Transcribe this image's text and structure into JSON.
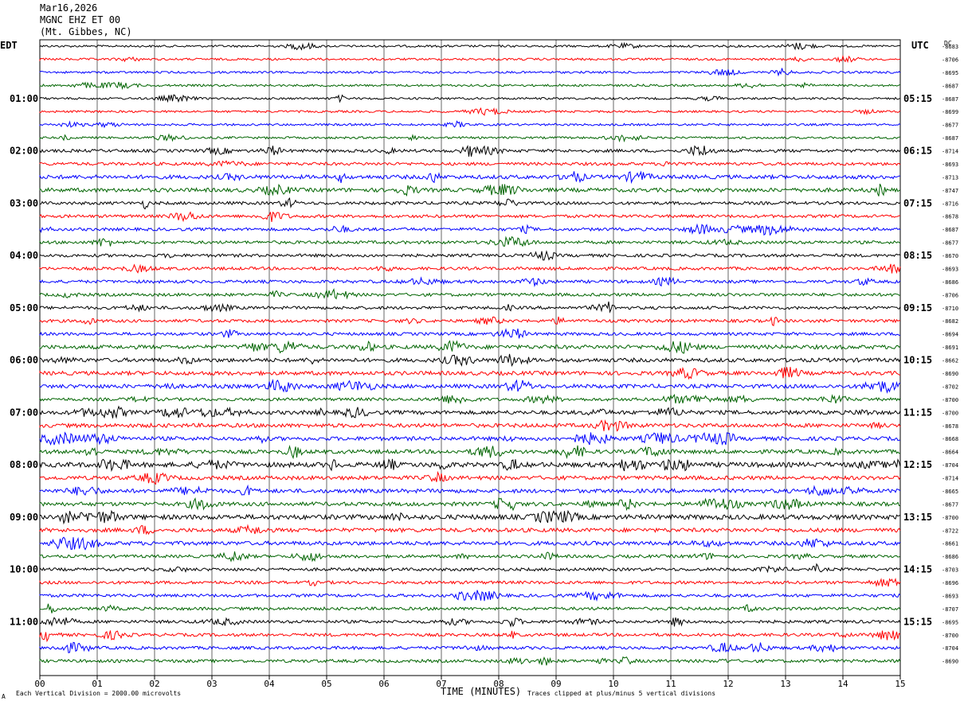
{
  "header": {
    "date": "Mar16,2026",
    "station": "MGNC EHZ ET 00",
    "location": "(Mt. Gibbes, NC)"
  },
  "left_label": "EDT",
  "right_label": "UTC",
  "dc_label": "DC",
  "footer": {
    "scale_note": "Each Vertical Division = 2000.00 microvolts",
    "clip_note": "Traces clipped at plus/minus 5 vertical divisions",
    "corner_mark": "A"
  },
  "colors": {
    "trace_cycle": [
      "#000000",
      "#ff0000",
      "#0000ff",
      "#006400"
    ],
    "grid": "#000000",
    "background": "#ffffff"
  },
  "chart_data": {
    "type": "line",
    "title": "MGNC EHZ ET 00",
    "xlabel": "TIME (MINUTES)",
    "ylabel": "",
    "xlim": [
      0,
      15
    ],
    "x_ticks": [
      "00",
      "01",
      "02",
      "03",
      "04",
      "05",
      "06",
      "07",
      "08",
      "09",
      "10",
      "11",
      "12",
      "13",
      "14",
      "15"
    ],
    "grid": "vertical minute lines",
    "traces_per_hour": 4,
    "trace_count": 48,
    "left_hour_labels": [
      "01:00",
      "02:00",
      "03:00",
      "04:00",
      "05:00",
      "06:00",
      "07:00",
      "08:00",
      "09:00",
      "10:00",
      "11:00"
    ],
    "right_hour_labels": [
      "05:15",
      "06:15",
      "07:15",
      "08:15",
      "09:15",
      "10:15",
      "11:15",
      "12:15",
      "13:15",
      "14:15",
      "15:15"
    ],
    "hour_label_first_trace": 4,
    "dc_offsets": [
      "-8683",
      "-8706",
      "-8695",
      "-8687",
      "-8687",
      "-8699",
      "-8677",
      "-8687",
      "-8714",
      "-8693",
      "-8713",
      "-8747",
      "-8716",
      "-8678",
      "-8687",
      "-8677",
      "-8670",
      "-8693",
      "-8686",
      "-8706",
      "-8710",
      "-8682",
      "-8694",
      "-8691",
      "-8662",
      "-8690",
      "-8702",
      "-8700",
      "-8700",
      "-8678",
      "-8668",
      "-8664",
      "-8704",
      "-8714",
      "-8665",
      "-8677",
      "-8700",
      "-8722",
      "-8661",
      "-8686",
      "-8703",
      "-8696",
      "-8693",
      "-8707",
      "-8695",
      "-8700",
      "-8704",
      "-8690"
    ],
    "trace_activity": [
      1,
      1,
      1,
      1,
      1,
      1,
      1,
      1,
      2,
      2,
      3,
      3,
      2,
      2,
      2,
      2,
      2,
      2,
      2,
      2,
      2,
      2,
      2,
      3,
      3,
      3,
      3,
      2,
      3,
      3,
      3,
      3,
      4,
      3,
      3,
      3,
      4,
      3,
      3,
      2,
      2,
      2,
      2,
      2,
      2,
      2,
      2,
      2
    ]
  }
}
